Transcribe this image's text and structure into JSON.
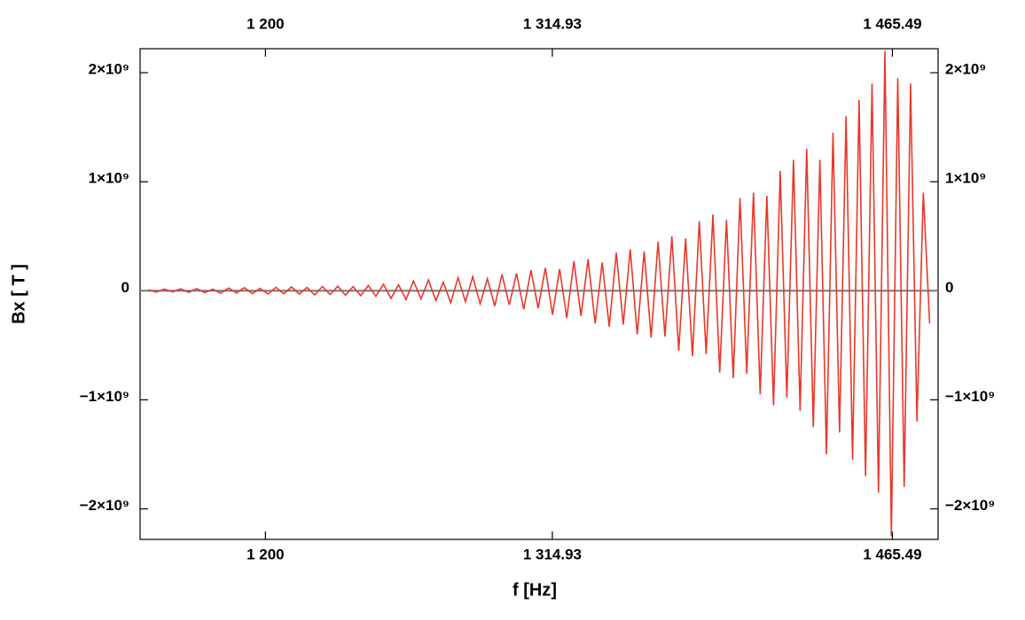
{
  "chart_data": {
    "type": "line",
    "xlabel": "f [Hz]",
    "ylabel": "Bx [ T ]",
    "xscale": "log",
    "xlim": [
      1153,
      1487
    ],
    "xticks": [
      {
        "value": 1200,
        "label": "1 200"
      },
      {
        "value": 1314.93,
        "label": "1 314.93"
      },
      {
        "value": 1465.49,
        "label": "1 465.49"
      }
    ],
    "ylim": [
      -2280000000,
      2220000000
    ],
    "yticks": [
      {
        "value": -2000000000,
        "label": "−2×10⁹"
      },
      {
        "value": -1000000000,
        "label": "−1×10⁹"
      },
      0,
      {
        "value": 1000000000,
        "label": "1×10⁹"
      },
      {
        "value": 2000000000,
        "label": "2×10⁹"
      }
    ],
    "series": [
      {
        "color": "#e8382a",
        "x": [
          1156,
          1159,
          1162,
          1165,
          1168,
          1171,
          1174,
          1177,
          1180,
          1183,
          1186,
          1189,
          1192,
          1195,
          1198,
          1201,
          1204,
          1207,
          1210,
          1213,
          1216,
          1219,
          1222,
          1225,
          1228,
          1231,
          1234,
          1237,
          1240,
          1243,
          1246,
          1249,
          1252,
          1255,
          1258,
          1261,
          1264,
          1267,
          1270,
          1273,
          1276,
          1279,
          1282,
          1285,
          1288,
          1291,
          1294,
          1297,
          1300,
          1303,
          1306,
          1309,
          1312,
          1315,
          1318,
          1321,
          1324,
          1327,
          1330,
          1333,
          1336,
          1339,
          1342,
          1345,
          1348,
          1351,
          1354,
          1357,
          1360,
          1363,
          1366,
          1369,
          1372,
          1375,
          1378,
          1381,
          1384,
          1387,
          1390,
          1393,
          1396,
          1399,
          1402,
          1405,
          1408,
          1411,
          1414,
          1417,
          1420,
          1423,
          1426,
          1429,
          1432,
          1435,
          1438,
          1441,
          1444,
          1447,
          1450,
          1453,
          1456,
          1459,
          1462,
          1465,
          1468,
          1471,
          1474,
          1477,
          1480,
          1483
        ],
        "values": [
          10000000.0,
          -12000000.0,
          15000000.0,
          -10000000.0,
          18000000.0,
          -15000000.0,
          20000000.0,
          -18000000.0,
          15000000.0,
          -22000000.0,
          25000000.0,
          -20000000.0,
          28000000.0,
          -25000000.0,
          22000000.0,
          -30000000.0,
          32000000.0,
          -28000000.0,
          35000000.0,
          -30000000.0,
          30000000.0,
          -38000000.0,
          40000000.0,
          -35000000.0,
          42000000.0,
          -40000000.0,
          38000000.0,
          -45000000.0,
          48000000.0,
          -50000000.0,
          60000000.0,
          -70000000.0,
          55000000.0,
          -80000000.0,
          90000000.0,
          -75000000.0,
          100000000.0,
          -90000000.0,
          80000000.0,
          -110000000.0,
          120000000.0,
          -100000000.0,
          130000000.0,
          -120000000.0,
          110000000.0,
          -140000000.0,
          150000000.0,
          -130000000.0,
          160000000.0,
          -170000000.0,
          190000000.0,
          -160000000.0,
          210000000.0,
          -220000000.0,
          200000000.0,
          -250000000.0,
          270000000.0,
          -230000000.0,
          290000000.0,
          -300000000.0,
          260000000.0,
          -330000000.0,
          350000000.0,
          -310000000.0,
          380000000.0,
          -400000000.0,
          360000000.0,
          -430000000.0,
          450000000.0,
          -420000000.0,
          500000000.0,
          -550000000.0,
          480000000.0,
          -600000000.0,
          640000000.0,
          -580000000.0,
          700000000.0,
          -750000000.0,
          650000000.0,
          -800000000.0,
          850000000.0,
          -760000000.0,
          900000000.0,
          -950000000.0,
          870000000.0,
          -1050000000.0,
          1100000000.0,
          -980000000.0,
          1200000000.0,
          -1100000000.0,
          1300000000.0,
          -1250000000.0,
          1200000000.0,
          -1500000000.0,
          1450000000.0,
          -1300000000.0,
          1600000000.0,
          -1550000000.0,
          1750000000.0,
          -1700000000.0,
          1900000000.0,
          -1850000000.0,
          2200000000.0,
          -2250000000.0,
          1950000000.0,
          -1800000000.0,
          1900000000.0,
          -1200000000.0,
          900000000.0,
          -300000000.0
        ]
      }
    ]
  }
}
